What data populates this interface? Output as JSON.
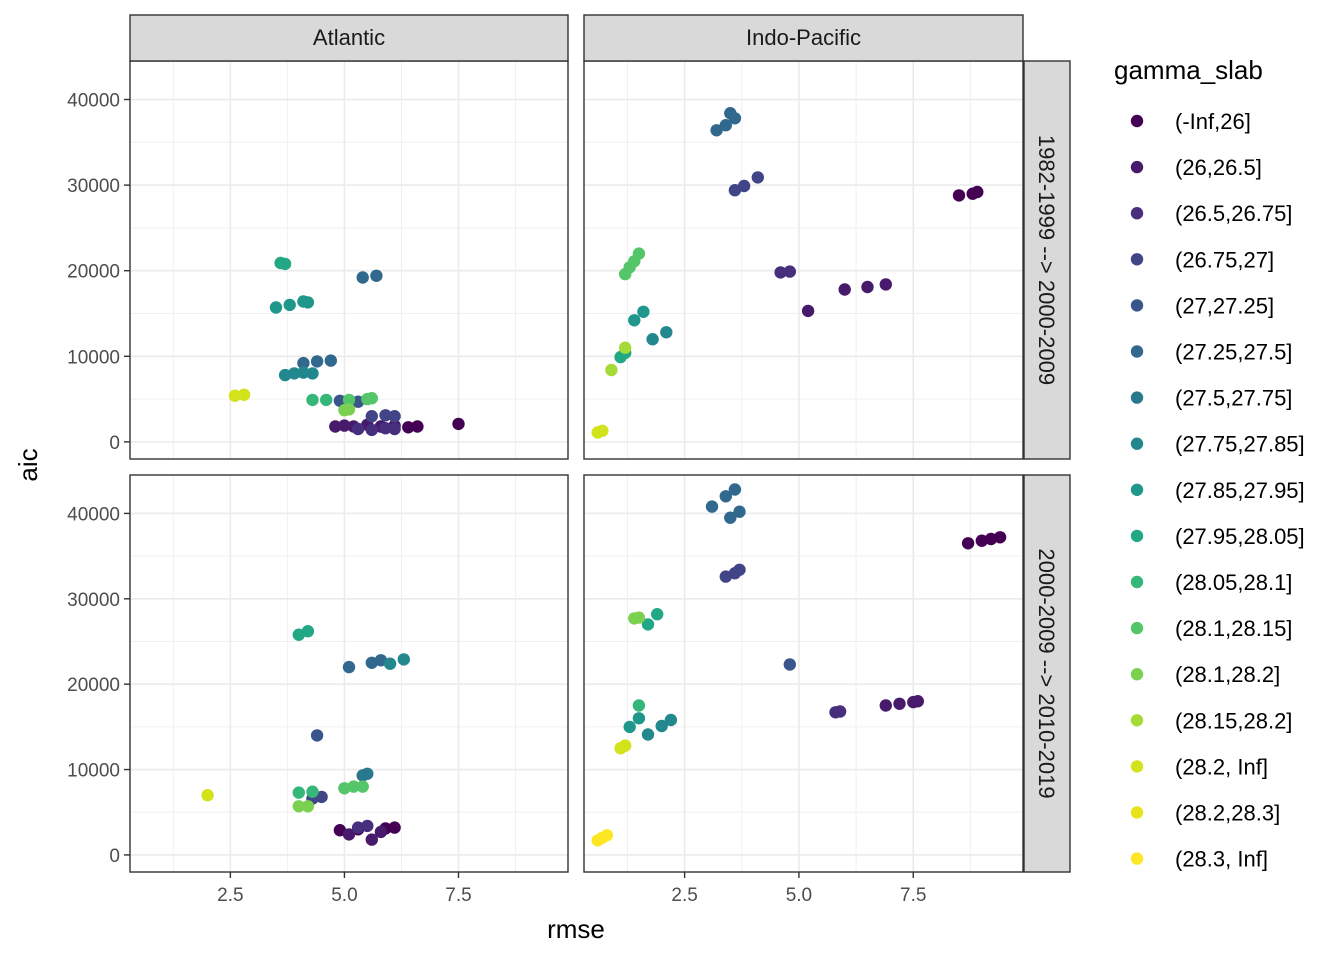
{
  "chart_data": {
    "type": "scatter",
    "xlabel": "rmse",
    "ylabel": "aic",
    "xlim": [
      0.3,
      9.9
    ],
    "ylim": [
      -2000,
      44500
    ],
    "x_ticks": [
      2.5,
      5.0,
      7.5
    ],
    "x_tick_labels": [
      "2.5",
      "5.0",
      "7.5"
    ],
    "y_ticks": [
      0,
      10000,
      20000,
      30000,
      40000
    ],
    "y_tick_labels": [
      "0",
      "10000",
      "20000",
      "30000",
      "40000"
    ],
    "grid": true,
    "legend_position": "right",
    "facet_cols": [
      "Atlantic",
      "Indo-Pacific"
    ],
    "facet_rows": [
      "1982-1999 --> 2000-2009",
      "2000-2009 --> 2010-2019"
    ],
    "legend": {
      "title": "gamma_slab",
      "levels": [
        {
          "label": "(-Inf,26]",
          "color": "#440154"
        },
        {
          "label": "(26,26.5]",
          "color": "#481A6C"
        },
        {
          "label": "(26.5,26.75]",
          "color": "#472F7D"
        },
        {
          "label": "(26.75,27]",
          "color": "#414487"
        },
        {
          "label": "(27,27.25]",
          "color": "#39568C"
        },
        {
          "label": "(27.25,27.5]",
          "color": "#31688E"
        },
        {
          "label": "(27.5,27.75]",
          "color": "#2A788E"
        },
        {
          "label": "(27.75,27.85]",
          "color": "#23888E"
        },
        {
          "label": "(27.85,27.95]",
          "color": "#1F988B"
        },
        {
          "label": "(27.95,28.05]",
          "color": "#22A884"
        },
        {
          "label": "(28.05,28.1]",
          "color": "#35B779"
        },
        {
          "label": "(28.1,28.15]",
          "color": "#54C568"
        },
        {
          "label": "(28.1,28.2]",
          "color": "#7AD151"
        },
        {
          "label": "(28.15,28.2]",
          "color": "#A5DB36"
        },
        {
          "label": "(28.2, Inf]",
          "color": "#D2E21B"
        },
        {
          "label": "(28.2,28.3]",
          "color": "#E8E419"
        },
        {
          "label": "(28.3, Inf]",
          "color": "#FDE725"
        }
      ]
    },
    "panels": [
      {
        "basin": "Atlantic",
        "period": "1982-1999 --> 2000-2009",
        "points": [
          [
            5.8,
            1800,
            0
          ],
          [
            6.4,
            1700,
            0
          ],
          [
            6.6,
            1800,
            0
          ],
          [
            7.5,
            2100,
            0
          ],
          [
            4.8,
            1800,
            1
          ],
          [
            5.0,
            1900,
            1
          ],
          [
            5.2,
            1800,
            1
          ],
          [
            5.5,
            2000,
            1
          ],
          [
            5.8,
            1800,
            1
          ],
          [
            6.1,
            1900,
            1
          ],
          [
            5.3,
            1500,
            2
          ],
          [
            5.6,
            1400,
            2
          ],
          [
            5.9,
            1600,
            2
          ],
          [
            6.1,
            1500,
            2
          ],
          [
            5.6,
            3000,
            3
          ],
          [
            5.9,
            3100,
            3
          ],
          [
            6.1,
            3000,
            3
          ],
          [
            4.9,
            4800,
            4
          ],
          [
            5.3,
            4700,
            4
          ],
          [
            4.1,
            9200,
            5
          ],
          [
            4.4,
            9400,
            5
          ],
          [
            4.7,
            9500,
            5
          ],
          [
            5.4,
            19200,
            5
          ],
          [
            5.7,
            19400,
            5
          ],
          [
            3.7,
            7800,
            7
          ],
          [
            3.9,
            8000,
            7
          ],
          [
            4.1,
            8100,
            7
          ],
          [
            4.3,
            8000,
            7
          ],
          [
            3.5,
            15700,
            8
          ],
          [
            3.8,
            16000,
            8
          ],
          [
            4.1,
            16400,
            8
          ],
          [
            4.2,
            16300,
            8
          ],
          [
            3.6,
            20900,
            9
          ],
          [
            3.7,
            20800,
            9
          ],
          [
            4.3,
            4900,
            10
          ],
          [
            4.6,
            4900,
            10
          ],
          [
            5.1,
            4900,
            11
          ],
          [
            5.5,
            5000,
            11
          ],
          [
            5.6,
            5100,
            11
          ],
          [
            5.0,
            3700,
            12
          ],
          [
            5.1,
            3800,
            12
          ],
          [
            2.6,
            5400,
            14
          ],
          [
            2.8,
            5500,
            14
          ]
        ]
      },
      {
        "basin": "Indo-Pacific",
        "period": "1982-1999 --> 2000-2009",
        "points": [
          [
            8.5,
            28800,
            0
          ],
          [
            8.8,
            29000,
            0
          ],
          [
            8.9,
            29200,
            0
          ],
          [
            5.2,
            15300,
            1
          ],
          [
            6.0,
            17800,
            1
          ],
          [
            6.5,
            18100,
            1
          ],
          [
            6.9,
            18400,
            1
          ],
          [
            4.6,
            19800,
            2
          ],
          [
            4.8,
            19900,
            2
          ],
          [
            3.6,
            29400,
            3
          ],
          [
            3.8,
            29900,
            3
          ],
          [
            4.1,
            30900,
            3
          ],
          [
            3.2,
            36400,
            5
          ],
          [
            3.5,
            38400,
            5
          ],
          [
            3.6,
            37800,
            5
          ],
          [
            3.4,
            37000,
            5
          ],
          [
            1.8,
            12000,
            7
          ],
          [
            2.1,
            12800,
            7
          ],
          [
            1.4,
            14200,
            8
          ],
          [
            1.6,
            15200,
            8
          ],
          [
            1.1,
            9900,
            9
          ],
          [
            1.2,
            10400,
            9
          ],
          [
            1.2,
            19600,
            11
          ],
          [
            1.3,
            20400,
            11
          ],
          [
            1.4,
            21100,
            11
          ],
          [
            1.5,
            22000,
            11
          ],
          [
            0.9,
            8400,
            13
          ],
          [
            1.2,
            11000,
            13
          ],
          [
            0.6,
            1100,
            14
          ],
          [
            0.7,
            1300,
            14
          ]
        ]
      },
      {
        "basin": "Atlantic",
        "period": "2000-2009 --> 2010-2019",
        "points": [
          [
            4.9,
            2900,
            0
          ],
          [
            5.3,
            3000,
            0
          ],
          [
            5.9,
            3100,
            0
          ],
          [
            6.1,
            3200,
            0
          ],
          [
            5.1,
            2400,
            1
          ],
          [
            5.6,
            1800,
            1
          ],
          [
            5.8,
            2700,
            1
          ],
          [
            5.3,
            3200,
            2
          ],
          [
            5.5,
            3400,
            2
          ],
          [
            4.3,
            6600,
            3
          ],
          [
            4.5,
            6800,
            3
          ],
          [
            4.4,
            14000,
            4
          ],
          [
            5.1,
            22000,
            5
          ],
          [
            5.6,
            22500,
            5
          ],
          [
            5.8,
            22800,
            5
          ],
          [
            5.4,
            9300,
            6
          ],
          [
            5.5,
            9500,
            6
          ],
          [
            6.0,
            22400,
            7
          ],
          [
            6.3,
            22900,
            7
          ],
          [
            4.0,
            25800,
            9
          ],
          [
            4.2,
            26200,
            9
          ],
          [
            4.0,
            7300,
            10
          ],
          [
            4.3,
            7400,
            10
          ],
          [
            5.0,
            7800,
            11
          ],
          [
            5.2,
            8000,
            11
          ],
          [
            5.4,
            8000,
            11
          ],
          [
            4.0,
            5700,
            12
          ],
          [
            4.2,
            5700,
            12
          ],
          [
            2.0,
            7000,
            14
          ]
        ]
      },
      {
        "basin": "Indo-Pacific",
        "period": "2000-2009 --> 2010-2019",
        "points": [
          [
            8.7,
            36500,
            0
          ],
          [
            9.0,
            36800,
            0
          ],
          [
            9.2,
            37000,
            0
          ],
          [
            9.4,
            37200,
            0
          ],
          [
            6.9,
            17500,
            1
          ],
          [
            7.2,
            17700,
            1
          ],
          [
            7.5,
            17900,
            1
          ],
          [
            7.6,
            18000,
            1
          ],
          [
            5.8,
            16700,
            2
          ],
          [
            5.9,
            16800,
            2
          ],
          [
            3.4,
            32600,
            3
          ],
          [
            3.6,
            33000,
            3
          ],
          [
            3.7,
            33400,
            3
          ],
          [
            4.8,
            22300,
            4
          ],
          [
            3.1,
            40800,
            5
          ],
          [
            3.4,
            42000,
            5
          ],
          [
            3.6,
            42800,
            5
          ],
          [
            3.5,
            39500,
            5
          ],
          [
            3.7,
            40200,
            5
          ],
          [
            1.7,
            14100,
            7
          ],
          [
            2.0,
            15100,
            7
          ],
          [
            2.2,
            15800,
            7
          ],
          [
            1.3,
            15000,
            8
          ],
          [
            1.5,
            16000,
            8
          ],
          [
            1.7,
            27000,
            9
          ],
          [
            1.9,
            28200,
            9
          ],
          [
            1.5,
            17500,
            10
          ],
          [
            1.4,
            27700,
            12
          ],
          [
            1.5,
            27800,
            12
          ],
          [
            1.1,
            12500,
            14
          ],
          [
            1.2,
            12800,
            14
          ],
          [
            0.6,
            1700,
            16
          ],
          [
            0.7,
            2000,
            16
          ],
          [
            0.8,
            2300,
            16
          ]
        ]
      }
    ]
  }
}
